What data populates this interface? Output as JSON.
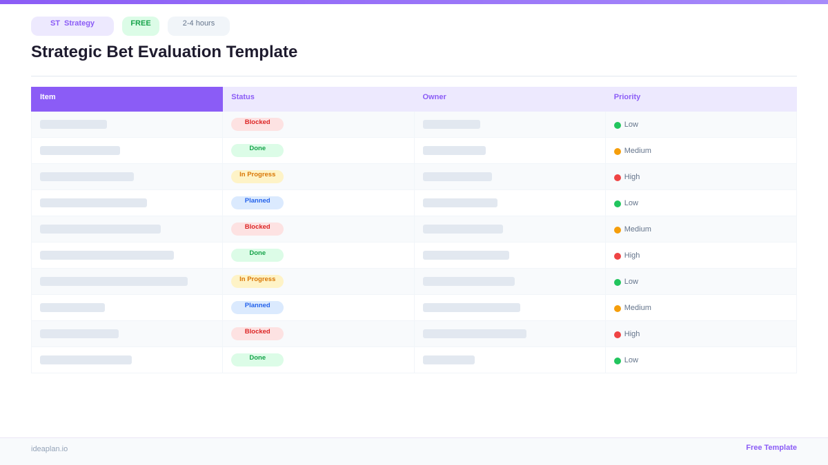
{
  "header": {
    "category_badge": {
      "code": "ST",
      "label": "Strategy"
    },
    "price_badge": "FREE",
    "duration_badge": "2-4 hours",
    "title": "Strategic Bet Evaluation Template"
  },
  "table": {
    "columns": [
      "Item",
      "Status",
      "Owner",
      "Priority"
    ],
    "rows": [
      {
        "status": "Blocked",
        "priority": "Low"
      },
      {
        "status": "Done",
        "priority": "Medium"
      },
      {
        "status": "In Progress",
        "priority": "High"
      },
      {
        "status": "Planned",
        "priority": "Low"
      },
      {
        "status": "Blocked",
        "priority": "Medium"
      },
      {
        "status": "Done",
        "priority": "High"
      },
      {
        "status": "In Progress",
        "priority": "Low"
      },
      {
        "status": "Planned",
        "priority": "Medium"
      },
      {
        "status": "Blocked",
        "priority": "High"
      },
      {
        "status": "Done",
        "priority": "Low"
      }
    ]
  },
  "footer": {
    "brand": "ideaplan.io",
    "link": "Free Template"
  }
}
